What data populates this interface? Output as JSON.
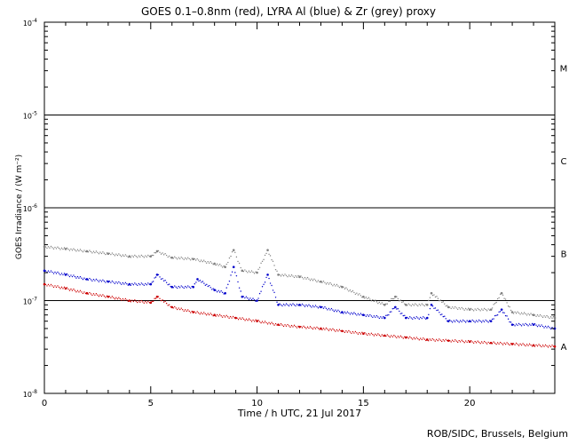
{
  "chart_data": {
    "type": "scatter",
    "title": "GOES 0.1–0.8nm (red), LYRA Al (blue) & Zr (grey) proxy",
    "xlabel": "Time / h UTC, 21 Jul 2017",
    "ylabel": "GOES Irradiance / (W m⁻²)",
    "credit": "ROB/SIDC, Brussels, Belgium",
    "xlim": [
      0,
      24
    ],
    "ylim": [
      1e-08,
      0.0001
    ],
    "yscale": "log",
    "x_ticks": [
      0,
      5,
      10,
      15,
      20
    ],
    "y_ticks": [
      {
        "base": "10",
        "exp": "-8",
        "value": 1e-08
      },
      {
        "base": "10",
        "exp": "-7",
        "value": 1e-07
      },
      {
        "base": "10",
        "exp": "-6",
        "value": 1e-06
      },
      {
        "base": "10",
        "exp": "-5",
        "value": 1e-05
      },
      {
        "base": "10",
        "exp": "-4",
        "value": 0.0001
      }
    ],
    "class_lines": [
      1e-07,
      1e-06,
      1e-05
    ],
    "class_labels": [
      {
        "label": "A",
        "y": 3.2e-08
      },
      {
        "label": "B",
        "y": 3.2e-07
      },
      {
        "label": "C",
        "y": 3.2e-06
      },
      {
        "label": "M",
        "y": 3.2e-05
      }
    ],
    "series": [
      {
        "color": "#808080",
        "x": [
          0,
          1,
          2,
          3,
          4,
          5,
          5.3,
          6,
          7,
          8,
          8.5,
          8.9,
          9.3,
          10,
          10.5,
          11,
          12,
          13,
          14,
          15,
          16,
          16.5,
          17,
          18,
          18.2,
          19,
          20,
          21,
          21.5,
          22,
          23,
          24
        ],
        "y": [
          3.8e-07,
          3.6e-07,
          3.4e-07,
          3.2e-07,
          3e-07,
          3e-07,
          3.4e-07,
          2.9e-07,
          2.8e-07,
          2.5e-07,
          2.3e-07,
          3.5e-07,
          2.1e-07,
          2e-07,
          3.5e-07,
          1.9e-07,
          1.8e-07,
          1.6e-07,
          1.4e-07,
          1.1e-07,
          9e-08,
          1.1e-07,
          9e-08,
          9e-08,
          1.2e-07,
          8.5e-08,
          8e-08,
          8e-08,
          1.2e-07,
          7.5e-08,
          7e-08,
          6.5e-08
        ]
      },
      {
        "color": "#0000cc",
        "x": [
          0,
          1,
          2,
          3,
          4,
          5,
          5.3,
          6,
          7,
          7.2,
          8,
          8.5,
          8.9,
          9.3,
          10,
          10.5,
          11,
          12,
          13,
          14,
          15,
          16,
          16.5,
          17,
          18,
          18.2,
          19,
          20,
          21,
          21.5,
          22,
          23,
          24
        ],
        "y": [
          2.1e-07,
          1.9e-07,
          1.7e-07,
          1.6e-07,
          1.5e-07,
          1.5e-07,
          1.9e-07,
          1.4e-07,
          1.4e-07,
          1.7e-07,
          1.3e-07,
          1.2e-07,
          2.3e-07,
          1.1e-07,
          1e-07,
          1.9e-07,
          9e-08,
          9e-08,
          8.5e-08,
          7.5e-08,
          7e-08,
          6.5e-08,
          8.5e-08,
          6.5e-08,
          6.5e-08,
          9e-08,
          6e-08,
          6e-08,
          6e-08,
          8e-08,
          5.5e-08,
          5.5e-08,
          5e-08
        ]
      },
      {
        "color": "#cc0000",
        "x": [
          0,
          1,
          2,
          3,
          4,
          5,
          5.3,
          6,
          7,
          8,
          9,
          10,
          11,
          12,
          13,
          14,
          15,
          16,
          17,
          18,
          19,
          20,
          21,
          22,
          23,
          24
        ],
        "y": [
          1.5e-07,
          1.35e-07,
          1.2e-07,
          1.1e-07,
          1e-07,
          9.5e-08,
          1.1e-07,
          8.5e-08,
          7.5e-08,
          7e-08,
          6.5e-08,
          6e-08,
          5.5e-08,
          5.2e-08,
          5e-08,
          4.7e-08,
          4.4e-08,
          4.2e-08,
          4e-08,
          3.8e-08,
          3.7e-08,
          3.6e-08,
          3.5e-08,
          3.4e-08,
          3.3e-08,
          3.2e-08
        ]
      }
    ]
  }
}
